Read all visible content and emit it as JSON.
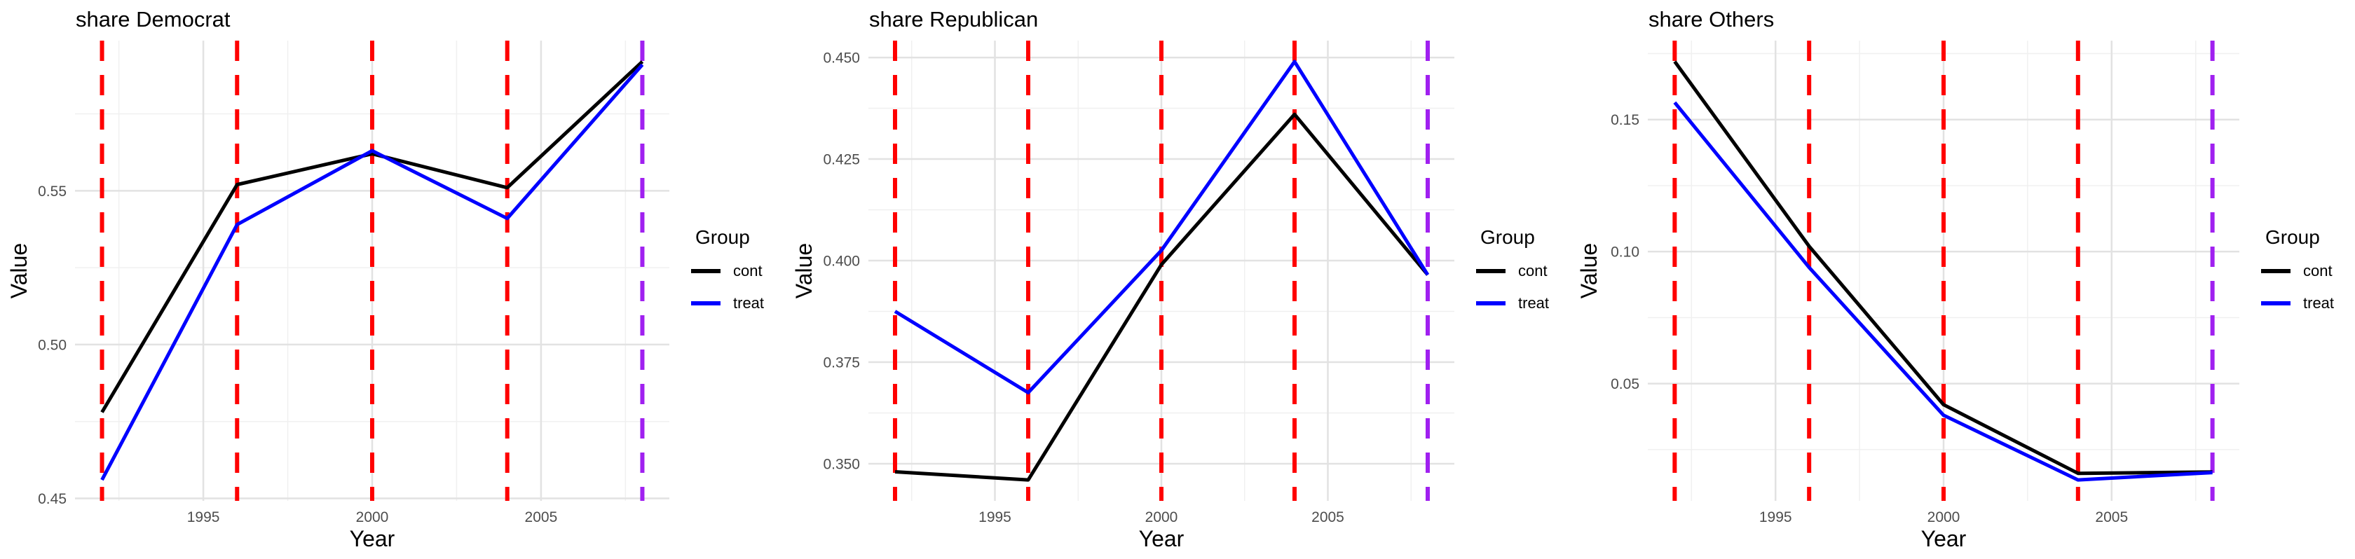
{
  "figure": {
    "background": "#FFFFFF",
    "grid_major_color": "#E2E2E2",
    "grid_minor_color": "#F0F0F0",
    "tick_label_color": "#4D4D4D",
    "event_line_color": "#FF0000",
    "treatment_line_color": "#A020F0",
    "cont_color": "#000000",
    "treat_color": "#0000FF"
  },
  "chart_data": [
    {
      "type": "line",
      "title": "share Democrat",
      "xlabel": "Year",
      "ylabel": "Value",
      "legend_title": "Group",
      "legend_position": "right",
      "grid": true,
      "x": [
        1992,
        1996,
        2000,
        2004,
        2008
      ],
      "series": [
        {
          "name": "cont",
          "color": "#000000",
          "values": [
            0.478,
            0.552,
            0.562,
            0.551,
            0.592
          ]
        },
        {
          "name": "treat",
          "color": "#0000FF",
          "values": [
            0.456,
            0.539,
            0.563,
            0.541,
            0.591
          ]
        }
      ],
      "vlines": [
        {
          "x": 1992,
          "color": "#FF0000",
          "style": "dashed"
        },
        {
          "x": 1996,
          "color": "#FF0000",
          "style": "dashed"
        },
        {
          "x": 2000,
          "color": "#FF0000",
          "style": "dashed"
        },
        {
          "x": 2004,
          "color": "#FF0000",
          "style": "dashed"
        },
        {
          "x": 2008,
          "color": "#A020F0",
          "style": "dashed"
        }
      ],
      "xlim": [
        1991.2,
        2008.8
      ],
      "ylim": [
        0.4492,
        0.5988
      ],
      "xticks": [
        {
          "v": 1995,
          "label": "1995"
        },
        {
          "v": 2000,
          "label": "2000"
        },
        {
          "v": 2005,
          "label": "2005"
        }
      ],
      "xminor": [
        1992.5,
        1997.5,
        2002.5,
        2007.5
      ],
      "yticks": [
        {
          "v": 0.45,
          "label": "0.45"
        },
        {
          "v": 0.5,
          "label": "0.50"
        },
        {
          "v": 0.55,
          "label": "0.55"
        }
      ],
      "yminor": [
        0.475,
        0.525,
        0.575
      ]
    },
    {
      "type": "line",
      "title": "share Republican",
      "xlabel": "Year",
      "ylabel": "Value",
      "legend_title": "Group",
      "legend_position": "right",
      "grid": true,
      "x": [
        1992,
        1996,
        2000,
        2004,
        2008
      ],
      "series": [
        {
          "name": "cont",
          "color": "#000000",
          "values": [
            0.348,
            0.346,
            0.399,
            0.436,
            0.3965
          ]
        },
        {
          "name": "treat",
          "color": "#0000FF",
          "values": [
            0.3875,
            0.3675,
            0.4025,
            0.449,
            0.3965
          ]
        }
      ],
      "vlines": [
        {
          "x": 1992,
          "color": "#FF0000",
          "style": "dashed"
        },
        {
          "x": 1996,
          "color": "#FF0000",
          "style": "dashed"
        },
        {
          "x": 2000,
          "color": "#FF0000",
          "style": "dashed"
        },
        {
          "x": 2004,
          "color": "#FF0000",
          "style": "dashed"
        },
        {
          "x": 2008,
          "color": "#A020F0",
          "style": "dashed"
        }
      ],
      "xlim": [
        1991.2,
        2008.8
      ],
      "ylim": [
        0.34085,
        0.45415
      ],
      "xticks": [
        {
          "v": 1995,
          "label": "1995"
        },
        {
          "v": 2000,
          "label": "2000"
        },
        {
          "v": 2005,
          "label": "2005"
        }
      ],
      "xminor": [
        1992.5,
        1997.5,
        2002.5,
        2007.5
      ],
      "yticks": [
        {
          "v": 0.35,
          "label": "0.350"
        },
        {
          "v": 0.375,
          "label": "0.375"
        },
        {
          "v": 0.4,
          "label": "0.400"
        },
        {
          "v": 0.425,
          "label": "0.425"
        },
        {
          "v": 0.45,
          "label": "0.450"
        }
      ],
      "yminor": [
        0.3625,
        0.3875,
        0.4125,
        0.4375
      ]
    },
    {
      "type": "line",
      "title": "share Others",
      "xlabel": "Year",
      "ylabel": "Value",
      "legend_title": "Group",
      "legend_position": "right",
      "grid": true,
      "x": [
        1992,
        1996,
        2000,
        2004,
        2008
      ],
      "series": [
        {
          "name": "cont",
          "color": "#000000",
          "values": [
            0.172,
            0.102,
            0.042,
            0.016,
            0.0165
          ]
        },
        {
          "name": "treat",
          "color": "#0000FF",
          "values": [
            0.1565,
            0.094,
            0.038,
            0.0135,
            0.0163
          ]
        }
      ],
      "vlines": [
        {
          "x": 1992,
          "color": "#FF0000",
          "style": "dashed"
        },
        {
          "x": 1996,
          "color": "#FF0000",
          "style": "dashed"
        },
        {
          "x": 2000,
          "color": "#FF0000",
          "style": "dashed"
        },
        {
          "x": 2004,
          "color": "#FF0000",
          "style": "dashed"
        },
        {
          "x": 2008,
          "color": "#A020F0",
          "style": "dashed"
        }
      ],
      "xlim": [
        1991.2,
        2008.8
      ],
      "ylim": [
        0.00557,
        0.17992
      ],
      "xticks": [
        {
          "v": 1995,
          "label": "1995"
        },
        {
          "v": 2000,
          "label": "2000"
        },
        {
          "v": 2005,
          "label": "2005"
        }
      ],
      "xminor": [
        1992.5,
        1997.5,
        2002.5,
        2007.5
      ],
      "yticks": [
        {
          "v": 0.05,
          "label": "0.05"
        },
        {
          "v": 0.1,
          "label": "0.10"
        },
        {
          "v": 0.15,
          "label": "0.15"
        }
      ],
      "yminor": [
        0.025,
        0.075,
        0.125,
        0.175
      ]
    }
  ]
}
